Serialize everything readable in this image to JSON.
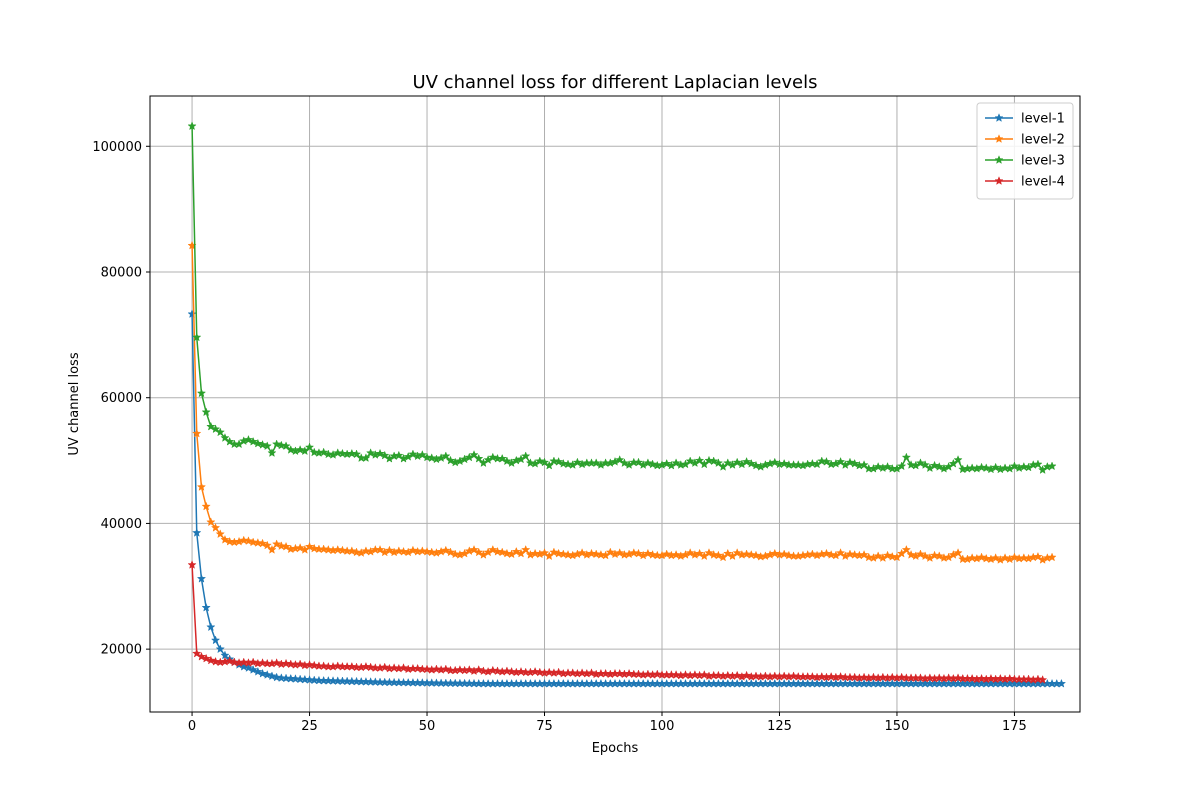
{
  "chart_data": {
    "type": "line",
    "title": "UV channel loss for different Laplacian levels",
    "xlabel": "Epochs",
    "ylabel": "UV channel loss",
    "xlim": [
      -8.95,
      188.95
    ],
    "ylim": [
      10000,
      108000
    ],
    "xticks": [
      0,
      25,
      50,
      75,
      100,
      125,
      150,
      175
    ],
    "yticks": [
      20000,
      40000,
      60000,
      80000,
      100000
    ],
    "grid": true,
    "legend_position": "top-right",
    "marker": "star",
    "x_range": [
      0,
      179
    ],
    "series": [
      {
        "name": "level-1",
        "color": "#1f77b4",
        "values": [
          73300,
          38500,
          31200,
          26600,
          23500,
          21400,
          20000,
          19000,
          18400,
          17900,
          17500,
          17200,
          17000,
          16700,
          16400,
          16100,
          15900,
          15700,
          15500,
          15400,
          15350,
          15300,
          15250,
          15200,
          15150,
          15100,
          15050,
          15000,
          14980,
          14960,
          14940,
          14920,
          14900,
          14880,
          14860,
          14840,
          14820,
          14800,
          14780,
          14760,
          14740,
          14720,
          14700,
          14690,
          14680,
          14670,
          14660,
          14650,
          14640,
          14630,
          14620,
          14610,
          14600,
          14590,
          14580,
          14570,
          14560,
          14550,
          14540,
          14530,
          14520,
          14510,
          14500,
          14500,
          14500,
          14500,
          14500,
          14500,
          14500,
          14500,
          14500,
          14500,
          14500,
          14500,
          14500,
          14500,
          14500,
          14500,
          14500,
          14500,
          14500,
          14500,
          14500,
          14500,
          14500,
          14500,
          14500,
          14500,
          14500,
          14500,
          14500,
          14500,
          14500,
          14500,
          14500,
          14500,
          14500,
          14500,
          14500,
          14500,
          14500,
          14500,
          14500,
          14500,
          14500,
          14500,
          14500,
          14500,
          14500,
          14500,
          14500,
          14500,
          14500,
          14500,
          14500,
          14500,
          14500,
          14500,
          14500,
          14500,
          14500,
          14500,
          14500,
          14500,
          14500,
          14500,
          14500,
          14500,
          14500,
          14500,
          14500,
          14500,
          14500,
          14500,
          14500,
          14500,
          14500,
          14500,
          14500,
          14500,
          14500,
          14500,
          14500,
          14500,
          14500,
          14500,
          14500,
          14500,
          14500,
          14500,
          14500,
          14500,
          14500,
          14500,
          14500,
          14500,
          14500,
          14500,
          14500,
          14500,
          14500,
          14500,
          14500,
          14500,
          14500,
          14500,
          14500,
          14500,
          14500,
          14500,
          14500,
          14500,
          14500,
          14500,
          14500,
          14500,
          14500,
          14500,
          14500,
          14500,
          14500,
          14500,
          14500,
          14500,
          14500,
          14500
        ]
      },
      {
        "name": "level-2",
        "color": "#ff7f0e",
        "values": [
          84200,
          54300,
          45800,
          42700,
          40200,
          39300,
          38300,
          37400,
          37100,
          37000,
          37100,
          37300,
          37200,
          37000,
          36900,
          36800,
          36500,
          35800,
          36700,
          36400,
          36300,
          35900,
          36000,
          36100,
          35800,
          36300,
          36000,
          35900,
          35900,
          35800,
          35700,
          35800,
          35700,
          35600,
          35600,
          35400,
          35300,
          35600,
          35500,
          35800,
          35800,
          35400,
          35700,
          35400,
          35600,
          35500,
          35400,
          35700,
          35500,
          35600,
          35500,
          35400,
          35300,
          35500,
          35700,
          35400,
          35100,
          35000,
          35200,
          35600,
          35800,
          35400,
          35000,
          35400,
          35800,
          35500,
          35400,
          35200,
          35100,
          35500,
          35200,
          35800,
          35000,
          35200,
          35100,
          35300,
          34800,
          35400,
          35200,
          35100,
          35000,
          34900,
          35100,
          35300,
          35000,
          35200,
          35100,
          35000,
          34900,
          35400,
          35100,
          35300,
          35000,
          35100,
          35300,
          35200,
          34900,
          35200,
          35000,
          34900,
          34900,
          35100,
          34900,
          35000,
          34800,
          35000,
          35300,
          35000,
          35200,
          34800,
          35300,
          35000,
          34900,
          34600,
          35200,
          34800,
          35300,
          35000,
          35100,
          35000,
          34900,
          34700,
          34800,
          35000,
          35200,
          35000,
          35100,
          34900,
          34800,
          34800,
          34900,
          35000,
          35100,
          34900,
          35100,
          35200,
          35000,
          34900,
          35300,
          34800,
          35100,
          35000,
          34900,
          35000,
          34600,
          34500,
          34800,
          34500,
          34900,
          34700,
          34600,
          35200,
          35800,
          35000,
          34800,
          35100,
          34800,
          34500,
          34900,
          34800,
          34500,
          34600,
          35000,
          35300,
          34300,
          34300,
          34500,
          34400,
          34600,
          34400,
          34300,
          34500,
          34200,
          34500,
          34300,
          34600,
          34400,
          34500,
          34400,
          34600,
          34700,
          34200,
          34500,
          34600
        ]
      },
      {
        "name": "level-3",
        "color": "#2ca02c",
        "values": [
          103200,
          69600,
          60700,
          57700,
          55400,
          55000,
          54500,
          53600,
          53000,
          52600,
          52600,
          53100,
          53300,
          53000,
          52700,
          52500,
          52300,
          51200,
          52600,
          52400,
          52300,
          51700,
          51500,
          51700,
          51500,
          52100,
          51300,
          51200,
          51300,
          51000,
          50900,
          51200,
          51100,
          51000,
          51100,
          51000,
          50400,
          50400,
          51200,
          50900,
          51100,
          50800,
          50300,
          50700,
          50800,
          50300,
          50600,
          51000,
          50700,
          50900,
          50500,
          50400,
          50200,
          50400,
          50700,
          50000,
          49700,
          49900,
          50200,
          50500,
          50900,
          50300,
          49600,
          50100,
          50500,
          50300,
          50300,
          49900,
          49600,
          50000,
          50200,
          50700,
          49600,
          49500,
          49900,
          49700,
          49200,
          49900,
          49800,
          49500,
          49400,
          49300,
          49700,
          49400,
          49600,
          49600,
          49600,
          49300,
          49600,
          49600,
          49800,
          50100,
          49600,
          49300,
          49700,
          49700,
          49300,
          49600,
          49400,
          49200,
          49300,
          49500,
          49200,
          49600,
          49300,
          49400,
          49900,
          49600,
          50000,
          49400,
          50000,
          49900,
          49600,
          49000,
          49600,
          49300,
          49700,
          49400,
          49800,
          49500,
          49200,
          49000,
          49300,
          49500,
          49700,
          49400,
          49500,
          49300,
          49300,
          49300,
          49200,
          49400,
          49500,
          49400,
          49900,
          49800,
          49400,
          49500,
          49800,
          49300,
          49700,
          49500,
          49200,
          49300,
          48700,
          48700,
          49000,
          48800,
          49000,
          48700,
          48700,
          49100,
          50500,
          49300,
          49200,
          49600,
          49300,
          48800,
          49200,
          49000,
          48700,
          49000,
          49500,
          50100,
          48600,
          48700,
          48800,
          48700,
          48900,
          48800,
          48600,
          48900,
          48600,
          48800,
          48700,
          49100,
          48800,
          49000,
          48900,
          49300,
          49400,
          48500,
          49000,
          49100
        ]
      },
      {
        "name": "level-4",
        "color": "#d62728",
        "values": [
          33400,
          19300,
          18800,
          18500,
          18200,
          18000,
          17900,
          18000,
          18100,
          17900,
          17800,
          17900,
          17800,
          17900,
          17700,
          17800,
          17700,
          17700,
          17800,
          17600,
          17700,
          17600,
          17500,
          17600,
          17400,
          17500,
          17400,
          17300,
          17300,
          17200,
          17200,
          17300,
          17200,
          17200,
          17200,
          17100,
          17100,
          17200,
          17100,
          17000,
          17000,
          17100,
          16900,
          17000,
          16900,
          17000,
          16800,
          16900,
          16900,
          16800,
          16800,
          16700,
          16800,
          16700,
          16800,
          16600,
          16600,
          16700,
          16600,
          16700,
          16500,
          16700,
          16500,
          16400,
          16600,
          16500,
          16400,
          16500,
          16400,
          16300,
          16400,
          16300,
          16300,
          16400,
          16300,
          16200,
          16300,
          16200,
          16300,
          16100,
          16200,
          16200,
          16100,
          16200,
          16100,
          16200,
          16000,
          16100,
          16100,
          16000,
          16100,
          16100,
          16000,
          16100,
          16000,
          16000,
          15900,
          16000,
          15900,
          16000,
          15900,
          15900,
          15900,
          15900,
          15800,
          15900,
          15800,
          15900,
          15800,
          15900,
          15700,
          15800,
          15800,
          15700,
          15800,
          15700,
          15800,
          15600,
          15800,
          15600,
          15700,
          15600,
          15700,
          15600,
          15700,
          15600,
          15700,
          15600,
          15700,
          15600,
          15600,
          15600,
          15600,
          15500,
          15600,
          15500,
          15600,
          15500,
          15600,
          15500,
          15500,
          15500,
          15400,
          15500,
          15400,
          15500,
          15400,
          15500,
          15400,
          15500,
          15400,
          15500,
          15400,
          15400,
          15400,
          15400,
          15300,
          15400,
          15300,
          15400,
          15300,
          15400,
          15300,
          15400,
          15300,
          15300,
          15300,
          15200,
          15300,
          15200,
          15300,
          15200,
          15300,
          15200,
          15300,
          15200,
          15200,
          15200,
          15200,
          15100,
          15200,
          15100
        ]
      }
    ]
  }
}
